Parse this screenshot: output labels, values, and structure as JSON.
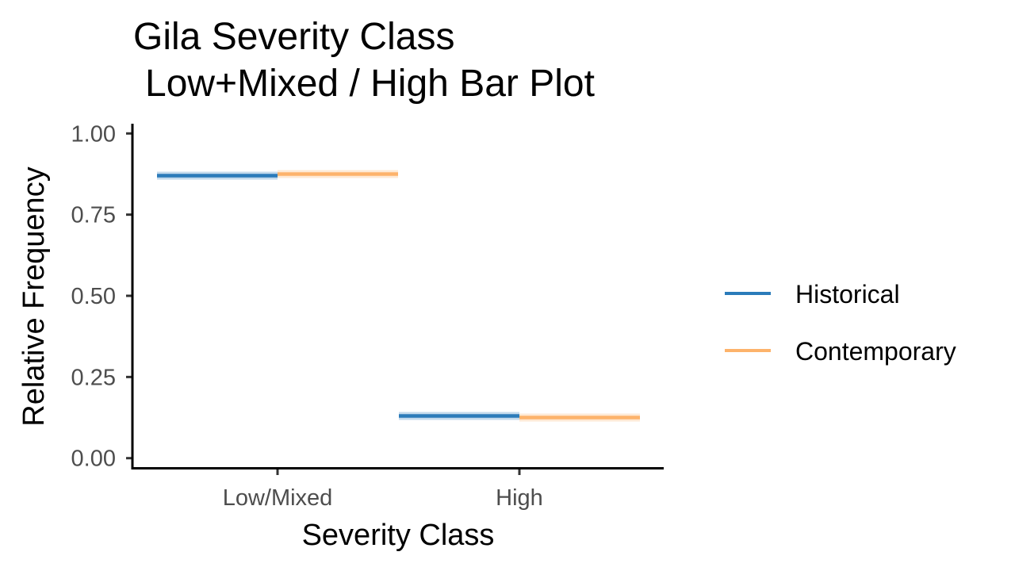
{
  "chart_data": {
    "type": "bar",
    "title": "Gila Severity Class",
    "subtitle": "Low+Mixed / High Bar Plot",
    "xlabel": "Severity Class",
    "ylabel": "Relative Frequency",
    "categories": [
      "Low/Mixed",
      "High"
    ],
    "ylim": [
      -0.03,
      1.03
    ],
    "yticks": [
      0.0,
      0.25,
      0.5,
      0.75,
      1.0
    ],
    "ytick_labels": [
      "0.00",
      "0.25",
      "0.50",
      "0.75",
      "1.00"
    ],
    "series": [
      {
        "name": "Historical",
        "values": [
          0.87,
          0.13
        ],
        "color": "#2b7bba"
      },
      {
        "name": "Contemporary",
        "values": [
          0.875,
          0.125
        ],
        "color": "#fdb36b"
      }
    ],
    "grid": false,
    "legend_position": "right"
  }
}
